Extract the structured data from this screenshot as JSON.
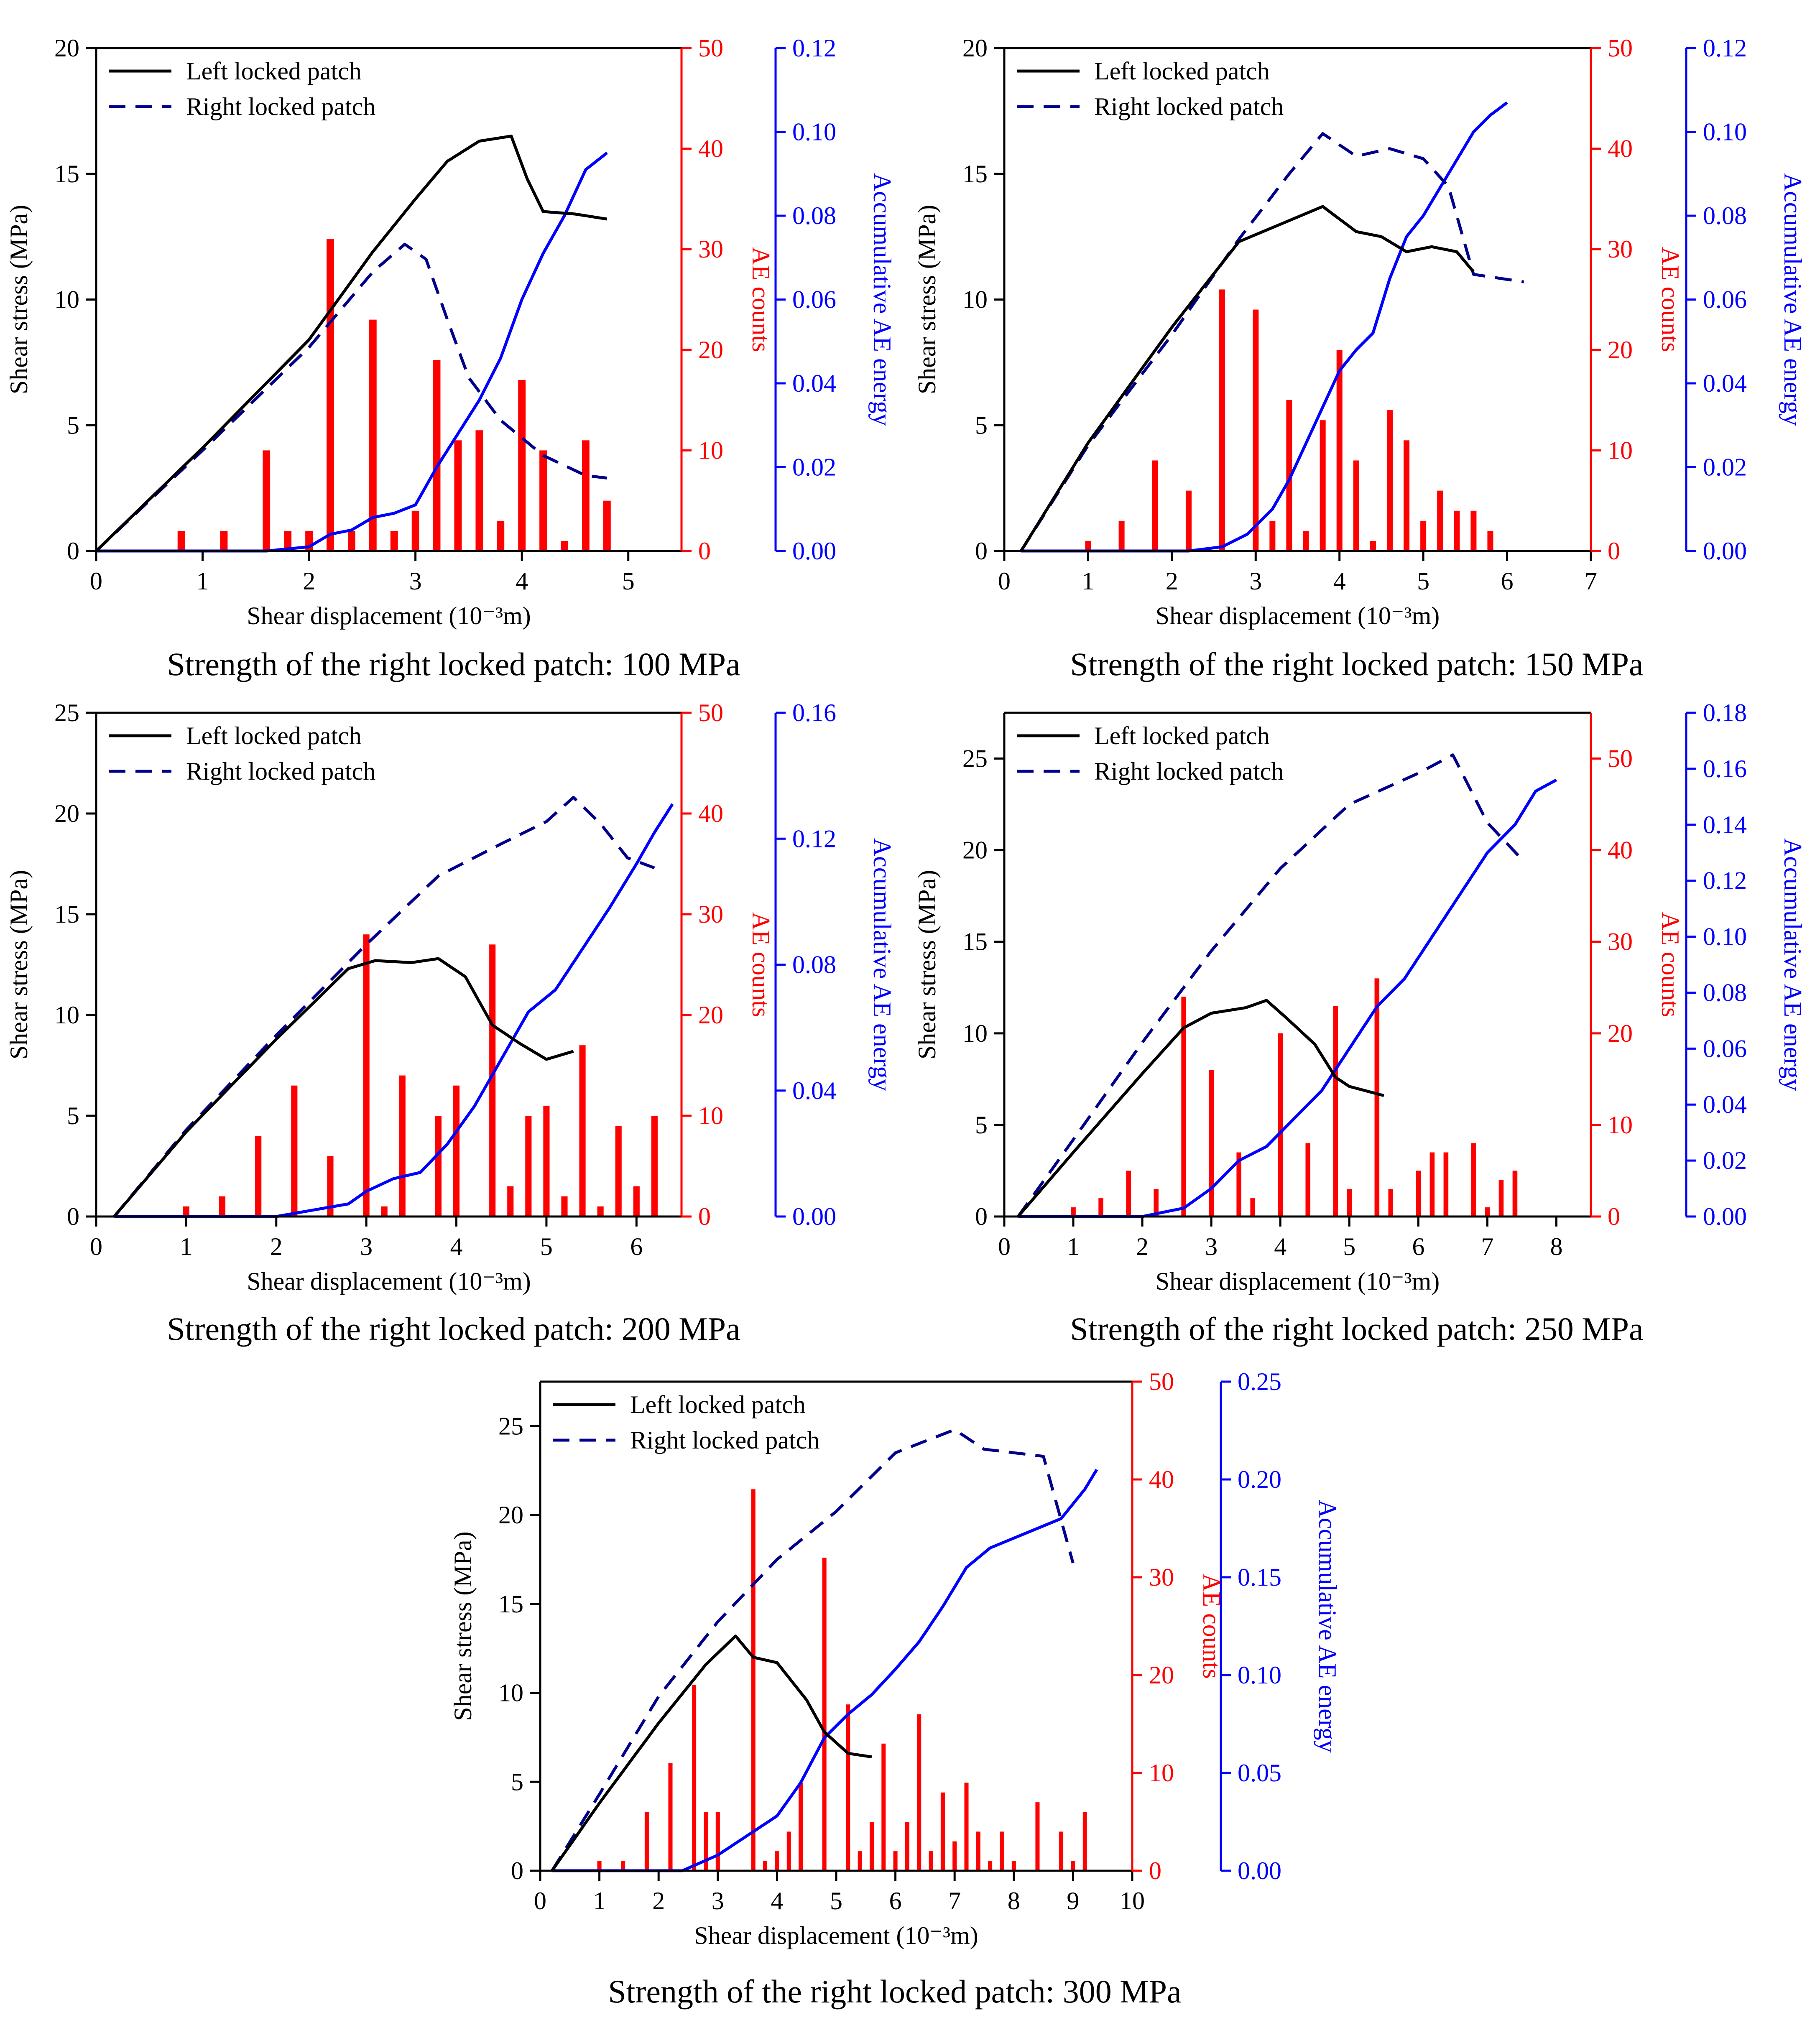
{
  "colors": {
    "left": "#000000",
    "right": "#00008b",
    "ae_counts": "#ff0000",
    "ae_energy": "#0000ff"
  },
  "chart_data": [
    {
      "type": "line+bar",
      "caption": "Strength of the right locked patch: 100 MPa",
      "xlabel": "Shear displacement (10⁻³m)",
      "ylabel_left": "Shear stress (MPa)",
      "ylabel_counts": "AE counts",
      "ylabel_energy": "Accumulative AE energy",
      "xlim": [
        0,
        5.5
      ],
      "ylim_stress": [
        0,
        20
      ],
      "ylim_counts": [
        0,
        50
      ],
      "ylim_energy": [
        0,
        0.12
      ],
      "xticks": [
        "0",
        "1",
        "2",
        "3",
        "4",
        "5"
      ],
      "yticks_stress": [
        "0",
        "5",
        "10",
        "15",
        "20"
      ],
      "yticks_counts": [
        "0",
        "10",
        "20",
        "30",
        "40",
        "50"
      ],
      "yticks_energy": [
        "0.00",
        "0.02",
        "0.04",
        "0.06",
        "0.08",
        "0.10",
        "0.12"
      ],
      "legend": [
        "Left locked patch",
        "Right locked patch"
      ],
      "left_locked_patch": {
        "x": [
          0,
          1,
          2,
          2.6,
          3.0,
          3.3,
          3.6,
          3.9,
          4.05,
          4.2,
          4.5,
          4.8
        ],
        "y": [
          0,
          4.1,
          8.4,
          11.9,
          14.0,
          15.5,
          16.3,
          16.5,
          14.8,
          13.5,
          13.4,
          13.2
        ]
      },
      "right_locked_patch": {
        "x": [
          0,
          1,
          2,
          2.6,
          2.9,
          3.1,
          3.3,
          3.5,
          3.8,
          4.2,
          4.6,
          4.8
        ],
        "y": [
          0,
          4.0,
          8.1,
          11.1,
          12.2,
          11.6,
          9.2,
          6.9,
          5.2,
          3.8,
          3.0,
          2.9
        ]
      },
      "ae_counts": {
        "x": [
          0.8,
          1.2,
          1.6,
          1.8,
          2.0,
          2.2,
          2.4,
          2.6,
          2.8,
          3.0,
          3.2,
          3.4,
          3.6,
          3.8,
          4.0,
          4.2,
          4.4,
          4.6,
          4.8
        ],
        "y": [
          2,
          2,
          10,
          2,
          2,
          31,
          2,
          23,
          2,
          4,
          19,
          11,
          12,
          3,
          17,
          10,
          1,
          11,
          5
        ]
      },
      "accumulative_ae_energy": {
        "x": [
          0,
          1.6,
          2.0,
          2.2,
          2.4,
          2.6,
          2.8,
          3.0,
          3.2,
          3.4,
          3.6,
          3.8,
          4.0,
          4.2,
          4.4,
          4.6,
          4.8
        ],
        "y": [
          0,
          0,
          0.001,
          0.004,
          0.005,
          0.008,
          0.009,
          0.011,
          0.02,
          0.028,
          0.036,
          0.046,
          0.06,
          0.071,
          0.08,
          0.091,
          0.095
        ]
      }
    },
    {
      "type": "line+bar",
      "caption": "Strength of the right locked patch: 150 MPa",
      "xlabel": "Shear displacement (10⁻³m)",
      "ylabel_left": "Shear stress (MPa)",
      "ylabel_counts": "AE counts",
      "ylabel_energy": "Accumulative AE energy",
      "xlim": [
        0,
        7
      ],
      "ylim_stress": [
        0,
        20
      ],
      "ylim_counts": [
        0,
        50
      ],
      "ylim_energy": [
        0,
        0.12
      ],
      "xticks": [
        "0",
        "1",
        "2",
        "3",
        "4",
        "5",
        "6",
        "7"
      ],
      "yticks_stress": [
        "0",
        "5",
        "10",
        "15",
        "20"
      ],
      "yticks_counts": [
        "0",
        "10",
        "20",
        "30",
        "40",
        "50"
      ],
      "yticks_energy": [
        "0.00",
        "0.02",
        "0.04",
        "0.06",
        "0.08",
        "0.10",
        "0.12"
      ],
      "legend": [
        "Left locked patch",
        "Right locked patch"
      ],
      "left_locked_patch": {
        "x": [
          0.2,
          1,
          2,
          2.8,
          3.3,
          3.8,
          4.2,
          4.5,
          4.8,
          5.1,
          5.4,
          5.6
        ],
        "y": [
          0,
          4.3,
          8.9,
          12.3,
          13.0,
          13.7,
          12.7,
          12.5,
          11.9,
          12.1,
          11.9,
          11.1
        ]
      },
      "right_locked_patch": {
        "x": [
          0.2,
          1,
          2,
          2.8,
          3.4,
          3.8,
          4.2,
          4.6,
          5.0,
          5.3,
          5.6,
          6.2
        ],
        "y": [
          0,
          4.2,
          8.6,
          12.4,
          15.0,
          16.6,
          15.7,
          16.0,
          15.6,
          14.5,
          11.0,
          10.7
        ]
      },
      "ae_counts": {
        "x": [
          1.0,
          1.4,
          1.8,
          2.2,
          2.6,
          3.0,
          3.2,
          3.4,
          3.6,
          3.8,
          4.0,
          4.2,
          4.4,
          4.6,
          4.8,
          5.0,
          5.2,
          5.4,
          5.6,
          5.8
        ],
        "y": [
          1,
          3,
          9,
          6,
          26,
          24,
          3,
          15,
          2,
          13,
          20,
          9,
          1,
          14,
          11,
          3,
          6,
          4,
          4,
          2
        ]
      },
      "accumulative_ae_energy": {
        "x": [
          0.2,
          2.2,
          2.6,
          2.9,
          3.2,
          3.4,
          3.7,
          4.0,
          4.2,
          4.4,
          4.6,
          4.8,
          5.0,
          5.3,
          5.6,
          5.8,
          6.0
        ],
        "y": [
          0,
          0,
          0.001,
          0.004,
          0.01,
          0.017,
          0.03,
          0.043,
          0.048,
          0.052,
          0.065,
          0.075,
          0.08,
          0.09,
          0.1,
          0.104,
          0.107
        ]
      }
    },
    {
      "type": "line+bar",
      "caption": "Strength of the right locked patch: 200 MPa",
      "xlabel": "Shear displacement (10⁻³m)",
      "ylabel_left": "Shear stress (MPa)",
      "ylabel_counts": "AE counts",
      "ylabel_energy": "Accumulative AE energy",
      "xlim": [
        0,
        6.5
      ],
      "ylim_stress": [
        0,
        25
      ],
      "ylim_counts": [
        0,
        50
      ],
      "ylim_energy": [
        0,
        0.16
      ],
      "xticks": [
        "0",
        "1",
        "2",
        "3",
        "4",
        "5",
        "6"
      ],
      "yticks_stress": [
        "0",
        "5",
        "10",
        "15",
        "20",
        "25"
      ],
      "yticks_counts": [
        "0",
        "10",
        "20",
        "30",
        "40",
        "50"
      ],
      "yticks_energy": [
        "0.00",
        "0.04",
        "0.08",
        "0.12",
        "0.16"
      ],
      "legend": [
        "Left locked patch",
        "Right locked patch"
      ],
      "left_locked_patch": {
        "x": [
          0.2,
          1,
          2,
          2.8,
          3.1,
          3.5,
          3.8,
          4.1,
          4.4,
          4.7,
          5.0,
          5.3
        ],
        "y": [
          0,
          4.2,
          8.8,
          12.3,
          12.7,
          12.6,
          12.8,
          11.9,
          9.5,
          8.6,
          7.8,
          8.2
        ]
      },
      "right_locked_patch": {
        "x": [
          0.2,
          1,
          2,
          3,
          3.8,
          4.5,
          5.0,
          5.3,
          5.6,
          5.9,
          6.2
        ],
        "y": [
          0,
          4.3,
          9.0,
          13.5,
          16.9,
          18.5,
          19.6,
          20.8,
          19.5,
          17.8,
          17.3
        ]
      },
      "ae_counts": {
        "x": [
          1.0,
          1.4,
          1.8,
          2.2,
          2.6,
          3.0,
          3.2,
          3.4,
          3.8,
          4.0,
          4.4,
          4.6,
          4.8,
          5.0,
          5.2,
          5.4,
          5.6,
          5.8,
          6.0,
          6.2
        ],
        "y": [
          1,
          2,
          8,
          13,
          6,
          28,
          1,
          14,
          10,
          13,
          27,
          3,
          10,
          11,
          2,
          17,
          1,
          9,
          3,
          10
        ]
      },
      "accumulative_ae_energy": {
        "x": [
          0.2,
          2.0,
          2.4,
          2.8,
          3.0,
          3.3,
          3.6,
          3.9,
          4.2,
          4.5,
          4.8,
          5.1,
          5.4,
          5.7,
          6.0,
          6.2,
          6.4
        ],
        "y": [
          0,
          0,
          0.002,
          0.004,
          0.008,
          0.012,
          0.014,
          0.023,
          0.035,
          0.05,
          0.065,
          0.072,
          0.085,
          0.098,
          0.112,
          0.122,
          0.131
        ]
      }
    },
    {
      "type": "line+bar",
      "caption": "Strength of the right locked patch: 250 MPa",
      "xlabel": "Shear displacement (10⁻³m)",
      "ylabel_left": "Shear stress (MPa)",
      "ylabel_counts": "AE counts",
      "ylabel_energy": "Accumulative AE energy",
      "xlim": [
        0,
        8.5
      ],
      "ylim_stress": [
        0,
        27.5
      ],
      "ylim_counts": [
        0,
        55
      ],
      "ylim_energy": [
        0,
        0.18
      ],
      "xticks": [
        "0",
        "1",
        "2",
        "3",
        "4",
        "5",
        "6",
        "7",
        "8"
      ],
      "yticks_stress": [
        "0",
        "5",
        "10",
        "15",
        "20",
        "25"
      ],
      "yticks_counts": [
        "0",
        "10",
        "20",
        "30",
        "40",
        "50"
      ],
      "yticks_energy": [
        "0.00",
        "0.02",
        "0.04",
        "0.06",
        "0.08",
        "0.10",
        "0.12",
        "0.14",
        "0.16",
        "0.18"
      ],
      "legend": [
        "Left locked patch",
        "Right locked patch"
      ],
      "left_locked_patch": {
        "x": [
          0.2,
          1,
          2,
          2.6,
          3.0,
          3.5,
          3.8,
          4.1,
          4.5,
          4.8,
          5.0,
          5.5
        ],
        "y": [
          0,
          3.5,
          7.8,
          10.3,
          11.1,
          11.4,
          11.8,
          10.8,
          9.4,
          7.6,
          7.1,
          6.6
        ]
      },
      "right_locked_patch": {
        "x": [
          0.2,
          1,
          2,
          3,
          4,
          5,
          6,
          6.5,
          7,
          7.5
        ],
        "y": [
          0,
          4.2,
          9.5,
          14.5,
          19.0,
          22.5,
          24.2,
          25.2,
          21.5,
          19.5
        ]
      },
      "ae_counts": {
        "x": [
          1.0,
          1.4,
          1.8,
          2.2,
          2.6,
          3.0,
          3.4,
          3.6,
          4.0,
          4.4,
          4.8,
          5.0,
          5.4,
          5.6,
          6.0,
          6.2,
          6.4,
          6.8,
          7.0,
          7.2,
          7.4
        ],
        "y": [
          1,
          2,
          5,
          3,
          24,
          16,
          7,
          2,
          20,
          8,
          23,
          3,
          26,
          3,
          5,
          7,
          7,
          8,
          1,
          4,
          5
        ]
      },
      "accumulative_ae_energy": {
        "x": [
          0.2,
          2.0,
          2.6,
          3.0,
          3.4,
          3.8,
          4.2,
          4.6,
          5.0,
          5.4,
          5.8,
          6.2,
          6.6,
          7.0,
          7.4,
          7.7,
          8.0
        ],
        "y": [
          0,
          0,
          0.003,
          0.01,
          0.02,
          0.025,
          0.035,
          0.045,
          0.06,
          0.075,
          0.085,
          0.1,
          0.115,
          0.13,
          0.14,
          0.152,
          0.156
        ]
      }
    },
    {
      "type": "line+bar",
      "caption": "Strength of the right locked patch: 300 MPa",
      "xlabel": "Shear displacement (10⁻³m)",
      "ylabel_left": "Shear stress (MPa)",
      "ylabel_counts": "AE counts",
      "ylabel_energy": "Accumulative AE energy",
      "xlim": [
        0,
        10
      ],
      "ylim_stress": [
        0,
        27.5
      ],
      "ylim_counts": [
        0,
        50
      ],
      "ylim_energy": [
        0,
        0.25
      ],
      "xticks": [
        "0",
        "1",
        "2",
        "3",
        "4",
        "5",
        "6",
        "7",
        "8",
        "9",
        "10"
      ],
      "yticks_stress": [
        "0",
        "5",
        "10",
        "15",
        "20",
        "25"
      ],
      "yticks_counts": [
        "0",
        "10",
        "20",
        "30",
        "40",
        "50"
      ],
      "yticks_energy": [
        "0.00",
        "0.05",
        "0.10",
        "0.15",
        "0.20",
        "0.25"
      ],
      "legend": [
        "Left locked patch",
        "Right locked patch"
      ],
      "left_locked_patch": {
        "x": [
          0.2,
          1,
          2,
          2.8,
          3.3,
          3.6,
          4.0,
          4.5,
          4.8,
          5.2,
          5.6
        ],
        "y": [
          0,
          3.8,
          8.3,
          11.6,
          13.2,
          12.0,
          11.7,
          9.6,
          7.8,
          6.6,
          6.4
        ]
      },
      "right_locked_patch": {
        "x": [
          0.2,
          1,
          2,
          3,
          4,
          5,
          6,
          7,
          7.5,
          8,
          8.5,
          9.0
        ],
        "y": [
          0,
          4.3,
          9.8,
          14.0,
          17.5,
          20.2,
          23.5,
          24.8,
          23.7,
          23.5,
          23.3,
          17.3
        ]
      },
      "ae_counts": {
        "x": [
          1.0,
          1.4,
          1.8,
          2.2,
          2.6,
          2.8,
          3.0,
          3.6,
          3.8,
          4.0,
          4.2,
          4.4,
          4.8,
          5.2,
          5.4,
          5.6,
          5.8,
          6.0,
          6.2,
          6.4,
          6.6,
          6.8,
          7.0,
          7.2,
          7.4,
          7.6,
          7.8,
          8.0,
          8.4,
          8.8,
          9.0,
          9.2
        ],
        "y": [
          1,
          1,
          6,
          11,
          19,
          6,
          6,
          39,
          1,
          2,
          4,
          9,
          32,
          17,
          2,
          5,
          13,
          2,
          5,
          16,
          2,
          8,
          3,
          9,
          4,
          1,
          4,
          1,
          7,
          4,
          1,
          6
        ]
      },
      "accumulative_ae_energy": {
        "x": [
          0.2,
          2.4,
          3.0,
          3.6,
          4.0,
          4.4,
          4.8,
          5.2,
          5.6,
          6.0,
          6.4,
          6.8,
          7.2,
          7.6,
          8.0,
          8.4,
          8.8,
          9.2,
          9.4
        ],
        "y": [
          0,
          0,
          0.008,
          0.02,
          0.028,
          0.045,
          0.068,
          0.08,
          0.09,
          0.103,
          0.117,
          0.135,
          0.155,
          0.165,
          0.17,
          0.175,
          0.18,
          0.195,
          0.205
        ]
      }
    }
  ]
}
